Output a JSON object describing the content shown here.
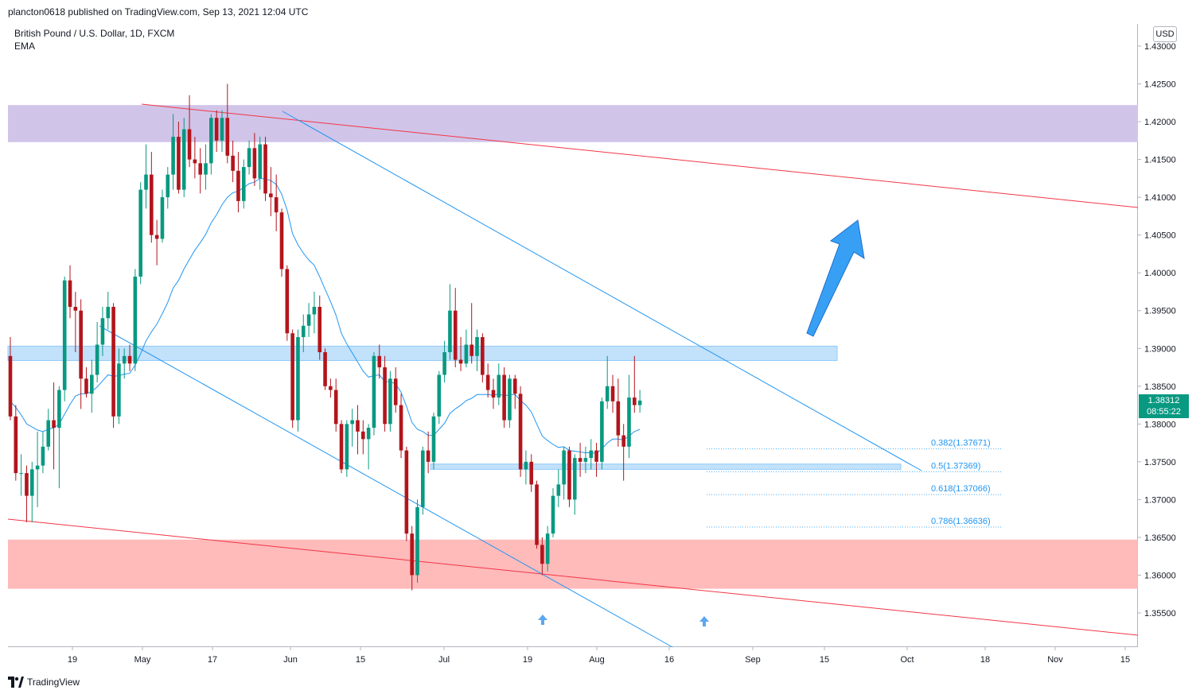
{
  "header": {
    "publisher_text": "plancton0618 published on TradingView.com, Sep 13, 2021 12:04 UTC"
  },
  "legend": {
    "symbol_title": "British Pound / U.S. Dollar, 1D, FXCM",
    "indicator": "EMA"
  },
  "price_axis": {
    "currency_button": "USD",
    "ticks": [
      "1.43000",
      "1.42500",
      "1.42000",
      "1.41500",
      "1.41000",
      "1.40500",
      "1.40000",
      "1.39500",
      "1.39000",
      "1.38500",
      "1.38000",
      "1.37500",
      "1.37000",
      "1.36500",
      "1.36000",
      "1.35500"
    ],
    "current_price": "1.38312",
    "countdown": "08:55:22"
  },
  "time_axis": {
    "ticks": [
      "19",
      "May",
      "17",
      "Jun",
      "15",
      "Jul",
      "19",
      "Aug",
      "16",
      "Sep",
      "15",
      "Oct",
      "18",
      "Nov",
      "15"
    ]
  },
  "footer": {
    "brand": "TradingView"
  },
  "colors": {
    "bull": "#089981",
    "bear": "#b2151c",
    "ema_line": "#2196f3",
    "trendline_red": "#f23645",
    "trendline_blue": "#2196f3",
    "zone_resistance": "#d1c4e9",
    "zone_support": "#ffb3b3",
    "zone_blue": "#bbdefb"
  },
  "chart_data": {
    "type": "candlestick",
    "symbol": "British Pound / U.S. Dollar",
    "interval": "1D",
    "source": "FXCM",
    "ylim": [
      1.351,
      1.4335
    ],
    "candles": [
      {
        "o": 1.389,
        "h": 1.3915,
        "l": 1.3805,
        "c": 1.381
      },
      {
        "o": 1.381,
        "h": 1.3825,
        "l": 1.3725,
        "c": 1.3735
      },
      {
        "o": 1.3735,
        "h": 1.376,
        "l": 1.3705,
        "c": 1.3735
      },
      {
        "o": 1.3735,
        "h": 1.3745,
        "l": 1.367,
        "c": 1.3705
      },
      {
        "o": 1.3705,
        "h": 1.375,
        "l": 1.367,
        "c": 1.374
      },
      {
        "o": 1.374,
        "h": 1.379,
        "l": 1.369,
        "c": 1.3745
      },
      {
        "o": 1.3745,
        "h": 1.379,
        "l": 1.3735,
        "c": 1.377
      },
      {
        "o": 1.377,
        "h": 1.382,
        "l": 1.3765,
        "c": 1.3805
      },
      {
        "o": 1.3805,
        "h": 1.3855,
        "l": 1.374,
        "c": 1.3795
      },
      {
        "o": 1.3795,
        "h": 1.385,
        "l": 1.3715,
        "c": 1.3845
      },
      {
        "o": 1.3845,
        "h": 1.3995,
        "l": 1.383,
        "c": 1.399
      },
      {
        "o": 1.399,
        "h": 1.401,
        "l": 1.394,
        "c": 1.3955
      },
      {
        "o": 1.3955,
        "h": 1.3975,
        "l": 1.3895,
        "c": 1.395
      },
      {
        "o": 1.395,
        "h": 1.3965,
        "l": 1.382,
        "c": 1.386
      },
      {
        "o": 1.386,
        "h": 1.3875,
        "l": 1.3835,
        "c": 1.384
      },
      {
        "o": 1.384,
        "h": 1.3885,
        "l": 1.3815,
        "c": 1.3865
      },
      {
        "o": 1.3865,
        "h": 1.3935,
        "l": 1.3855,
        "c": 1.3905
      },
      {
        "o": 1.3905,
        "h": 1.3955,
        "l": 1.389,
        "c": 1.394
      },
      {
        "o": 1.394,
        "h": 1.3975,
        "l": 1.3925,
        "c": 1.3955
      },
      {
        "o": 1.3955,
        "h": 1.396,
        "l": 1.3795,
        "c": 1.381
      },
      {
        "o": 1.381,
        "h": 1.39,
        "l": 1.38,
        "c": 1.388
      },
      {
        "o": 1.388,
        "h": 1.39,
        "l": 1.386,
        "c": 1.389
      },
      {
        "o": 1.389,
        "h": 1.3905,
        "l": 1.387,
        "c": 1.388
      },
      {
        "o": 1.388,
        "h": 1.4005,
        "l": 1.387,
        "c": 1.3995
      },
      {
        "o": 1.3995,
        "h": 1.412,
        "l": 1.3985,
        "c": 1.411
      },
      {
        "o": 1.411,
        "h": 1.417,
        "l": 1.4085,
        "c": 1.413
      },
      {
        "o": 1.413,
        "h": 1.416,
        "l": 1.404,
        "c": 1.405
      },
      {
        "o": 1.405,
        "h": 1.407,
        "l": 1.401,
        "c": 1.4045
      },
      {
        "o": 1.4045,
        "h": 1.411,
        "l": 1.404,
        "c": 1.41
      },
      {
        "o": 1.41,
        "h": 1.414,
        "l": 1.4085,
        "c": 1.413
      },
      {
        "o": 1.413,
        "h": 1.421,
        "l": 1.411,
        "c": 1.418
      },
      {
        "o": 1.418,
        "h": 1.42,
        "l": 1.4105,
        "c": 1.411
      },
      {
        "o": 1.411,
        "h": 1.4205,
        "l": 1.41,
        "c": 1.419
      },
      {
        "o": 1.419,
        "h": 1.4235,
        "l": 1.414,
        "c": 1.415
      },
      {
        "o": 1.415,
        "h": 1.418,
        "l": 1.4125,
        "c": 1.4145
      },
      {
        "o": 1.4145,
        "h": 1.4165,
        "l": 1.4105,
        "c": 1.413
      },
      {
        "o": 1.413,
        "h": 1.417,
        "l": 1.411,
        "c": 1.4145
      },
      {
        "o": 1.4145,
        "h": 1.421,
        "l": 1.413,
        "c": 1.4205
      },
      {
        "o": 1.4205,
        "h": 1.4215,
        "l": 1.416,
        "c": 1.4175
      },
      {
        "o": 1.4175,
        "h": 1.4215,
        "l": 1.416,
        "c": 1.4205
      },
      {
        "o": 1.4205,
        "h": 1.425,
        "l": 1.4145,
        "c": 1.4155
      },
      {
        "o": 1.4155,
        "h": 1.4175,
        "l": 1.412,
        "c": 1.4135
      },
      {
        "o": 1.4135,
        "h": 1.416,
        "l": 1.408,
        "c": 1.4095
      },
      {
        "o": 1.4095,
        "h": 1.415,
        "l": 1.4085,
        "c": 1.414
      },
      {
        "o": 1.414,
        "h": 1.4175,
        "l": 1.413,
        "c": 1.4165
      },
      {
        "o": 1.4165,
        "h": 1.4185,
        "l": 1.4115,
        "c": 1.4125
      },
      {
        "o": 1.4125,
        "h": 1.418,
        "l": 1.411,
        "c": 1.417
      },
      {
        "o": 1.417,
        "h": 1.418,
        "l": 1.4095,
        "c": 1.4105
      },
      {
        "o": 1.4105,
        "h": 1.414,
        "l": 1.4075,
        "c": 1.41
      },
      {
        "o": 1.41,
        "h": 1.413,
        "l": 1.4055,
        "c": 1.408
      },
      {
        "o": 1.408,
        "h": 1.4085,
        "l": 1.3995,
        "c": 1.4005
      },
      {
        "o": 1.4005,
        "h": 1.401,
        "l": 1.391,
        "c": 1.392
      },
      {
        "o": 1.392,
        "h": 1.3925,
        "l": 1.3795,
        "c": 1.3805
      },
      {
        "o": 1.3805,
        "h": 1.3925,
        "l": 1.379,
        "c": 1.3915
      },
      {
        "o": 1.3915,
        "h": 1.3945,
        "l": 1.3895,
        "c": 1.393
      },
      {
        "o": 1.393,
        "h": 1.396,
        "l": 1.3915,
        "c": 1.3945
      },
      {
        "o": 1.3945,
        "h": 1.3975,
        "l": 1.392,
        "c": 1.3955
      },
      {
        "o": 1.3955,
        "h": 1.397,
        "l": 1.3885,
        "c": 1.3895
      },
      {
        "o": 1.3895,
        "h": 1.39,
        "l": 1.3845,
        "c": 1.385
      },
      {
        "o": 1.385,
        "h": 1.386,
        "l": 1.3835,
        "c": 1.3845
      },
      {
        "o": 1.3845,
        "h": 1.386,
        "l": 1.379,
        "c": 1.38
      },
      {
        "o": 1.38,
        "h": 1.3805,
        "l": 1.3735,
        "c": 1.374
      },
      {
        "o": 1.374,
        "h": 1.3805,
        "l": 1.373,
        "c": 1.38
      },
      {
        "o": 1.38,
        "h": 1.382,
        "l": 1.377,
        "c": 1.3805
      },
      {
        "o": 1.3805,
        "h": 1.3825,
        "l": 1.376,
        "c": 1.379
      },
      {
        "o": 1.379,
        "h": 1.3805,
        "l": 1.376,
        "c": 1.378
      },
      {
        "o": 1.378,
        "h": 1.38,
        "l": 1.374,
        "c": 1.3795
      },
      {
        "o": 1.3795,
        "h": 1.3895,
        "l": 1.3785,
        "c": 1.389
      },
      {
        "o": 1.389,
        "h": 1.3905,
        "l": 1.386,
        "c": 1.3875
      },
      {
        "o": 1.3875,
        "h": 1.389,
        "l": 1.379,
        "c": 1.38
      },
      {
        "o": 1.38,
        "h": 1.387,
        "l": 1.379,
        "c": 1.386
      },
      {
        "o": 1.386,
        "h": 1.3875,
        "l": 1.3815,
        "c": 1.3825
      },
      {
        "o": 1.3825,
        "h": 1.384,
        "l": 1.3755,
        "c": 1.3765
      },
      {
        "o": 1.3765,
        "h": 1.377,
        "l": 1.3645,
        "c": 1.3655
      },
      {
        "o": 1.3655,
        "h": 1.3665,
        "l": 1.358,
        "c": 1.36
      },
      {
        "o": 1.36,
        "h": 1.37,
        "l": 1.359,
        "c": 1.369
      },
      {
        "o": 1.369,
        "h": 1.377,
        "l": 1.368,
        "c": 1.3765
      },
      {
        "o": 1.3765,
        "h": 1.379,
        "l": 1.3735,
        "c": 1.375
      },
      {
        "o": 1.375,
        "h": 1.3815,
        "l": 1.374,
        "c": 1.381
      },
      {
        "o": 1.381,
        "h": 1.387,
        "l": 1.38,
        "c": 1.3865
      },
      {
        "o": 1.3865,
        "h": 1.391,
        "l": 1.3855,
        "c": 1.3895
      },
      {
        "o": 1.3895,
        "h": 1.3985,
        "l": 1.3885,
        "c": 1.395
      },
      {
        "o": 1.395,
        "h": 1.398,
        "l": 1.3875,
        "c": 1.3885
      },
      {
        "o": 1.3885,
        "h": 1.3915,
        "l": 1.387,
        "c": 1.388
      },
      {
        "o": 1.388,
        "h": 1.3925,
        "l": 1.3875,
        "c": 1.3905
      },
      {
        "o": 1.3905,
        "h": 1.396,
        "l": 1.388,
        "c": 1.389
      },
      {
        "o": 1.389,
        "h": 1.3925,
        "l": 1.387,
        "c": 1.3915
      },
      {
        "o": 1.3915,
        "h": 1.392,
        "l": 1.3855,
        "c": 1.3865
      },
      {
        "o": 1.3865,
        "h": 1.388,
        "l": 1.3835,
        "c": 1.3845
      },
      {
        "o": 1.3845,
        "h": 1.386,
        "l": 1.382,
        "c": 1.3835
      },
      {
        "o": 1.3835,
        "h": 1.388,
        "l": 1.3825,
        "c": 1.3865
      },
      {
        "o": 1.3865,
        "h": 1.3875,
        "l": 1.3795,
        "c": 1.3805
      },
      {
        "o": 1.3805,
        "h": 1.3865,
        "l": 1.3795,
        "c": 1.386
      },
      {
        "o": 1.386,
        "h": 1.3865,
        "l": 1.382,
        "c": 1.384
      },
      {
        "o": 1.384,
        "h": 1.385,
        "l": 1.373,
        "c": 1.374
      },
      {
        "o": 1.374,
        "h": 1.3765,
        "l": 1.372,
        "c": 1.375
      },
      {
        "o": 1.375,
        "h": 1.376,
        "l": 1.371,
        "c": 1.372
      },
      {
        "o": 1.372,
        "h": 1.3725,
        "l": 1.3635,
        "c": 1.364
      },
      {
        "o": 1.364,
        "h": 1.365,
        "l": 1.36,
        "c": 1.3615
      },
      {
        "o": 1.3615,
        "h": 1.3665,
        "l": 1.3605,
        "c": 1.3655
      },
      {
        "o": 1.3655,
        "h": 1.3715,
        "l": 1.365,
        "c": 1.3705
      },
      {
        "o": 1.3705,
        "h": 1.374,
        "l": 1.369,
        "c": 1.372
      },
      {
        "o": 1.372,
        "h": 1.377,
        "l": 1.37,
        "c": 1.3765
      },
      {
        "o": 1.3765,
        "h": 1.377,
        "l": 1.369,
        "c": 1.37
      },
      {
        "o": 1.37,
        "h": 1.376,
        "l": 1.368,
        "c": 1.3755
      },
      {
        "o": 1.3755,
        "h": 1.3775,
        "l": 1.373,
        "c": 1.375
      },
      {
        "o": 1.375,
        "h": 1.377,
        "l": 1.3735,
        "c": 1.3755
      },
      {
        "o": 1.3755,
        "h": 1.378,
        "l": 1.374,
        "c": 1.3765
      },
      {
        "o": 1.3765,
        "h": 1.3775,
        "l": 1.373,
        "c": 1.375
      },
      {
        "o": 1.375,
        "h": 1.3835,
        "l": 1.374,
        "c": 1.383
      },
      {
        "o": 1.383,
        "h": 1.389,
        "l": 1.382,
        "c": 1.385
      },
      {
        "o": 1.385,
        "h": 1.3865,
        "l": 1.3815,
        "c": 1.383
      },
      {
        "o": 1.383,
        "h": 1.386,
        "l": 1.377,
        "c": 1.3785
      },
      {
        "o": 1.3785,
        "h": 1.38,
        "l": 1.3725,
        "c": 1.377
      },
      {
        "o": 1.377,
        "h": 1.3865,
        "l": 1.3755,
        "c": 1.3835
      },
      {
        "o": 1.3835,
        "h": 1.389,
        "l": 1.3815,
        "c": 1.3825
      },
      {
        "o": 1.3825,
        "h": 1.3845,
        "l": 1.3815,
        "c": 1.3831
      }
    ],
    "ema": [
      1.383,
      1.3822,
      1.3812,
      1.38,
      1.3796,
      1.3792,
      1.379,
      1.3793,
      1.3795,
      1.38,
      1.3813,
      1.3826,
      1.3837,
      1.384,
      1.384,
      1.3843,
      1.3849,
      1.3857,
      1.3865,
      1.3863,
      1.3864,
      1.3866,
      1.3867,
      1.3878,
      1.3893,
      1.391,
      1.3922,
      1.3932,
      1.3946,
      1.3961,
      1.398,
      1.399,
      1.4005,
      1.4018,
      1.403,
      1.404,
      1.4051,
      1.4066,
      1.4077,
      1.409,
      1.41,
      1.4106,
      1.4108,
      1.4113,
      1.4118,
      1.412,
      1.4125,
      1.4124,
      1.4122,
      1.4117,
      1.4104,
      1.4083,
      1.4052,
      1.4037,
      1.4026,
      1.4017,
      1.401,
      1.3995,
      1.3978,
      1.3962,
      1.3944,
      1.392,
      1.3906,
      1.3894,
      1.3882,
      1.387,
      1.3862,
      1.3864,
      1.3865,
      1.3856,
      1.3856,
      1.3853,
      1.3842,
      1.3823,
      1.3802,
      1.3793,
      1.379,
      1.3785,
      1.3785,
      1.3793,
      1.3801,
      1.3814,
      1.382,
      1.3825,
      1.3831,
      1.3834,
      1.3839,
      1.3839,
      1.3839,
      1.3838,
      1.384,
      1.3837,
      1.3839,
      1.3839,
      1.3831,
      1.3825,
      1.3816,
      1.38,
      1.3784,
      1.3778,
      1.3773,
      1.3769,
      1.377,
      1.3765,
      1.3764,
      1.3763,
      1.3762,
      1.3762,
      1.3761,
      1.3767,
      1.3775,
      1.378,
      1.378,
      1.3779,
      1.3784,
      1.379,
      1.3793
    ],
    "zones": [
      {
        "name": "resistance-zone",
        "y_top": 1.4222,
        "y_bottom": 1.4173
      },
      {
        "name": "blue-resistance-zone",
        "y_top": 1.3903,
        "y_bottom": 1.3884
      },
      {
        "name": "blue-support-zone",
        "y_top": 1.3747,
        "y_bottom": 1.374
      },
      {
        "name": "support-zone",
        "y_top": 1.3647,
        "y_bottom": 1.3582
      }
    ],
    "fibonacci": [
      {
        "label": "0.382(1.37671)",
        "price": 1.37671
      },
      {
        "label": "0.5(1.37369)",
        "price": 1.37369
      },
      {
        "label": "0.618(1.37066)",
        "price": 1.37066
      },
      {
        "label": "0.786(1.36636)",
        "price": 1.36636
      }
    ],
    "annotations": [
      "upward blue arrow",
      "two small up-arrow markers at lows"
    ]
  }
}
